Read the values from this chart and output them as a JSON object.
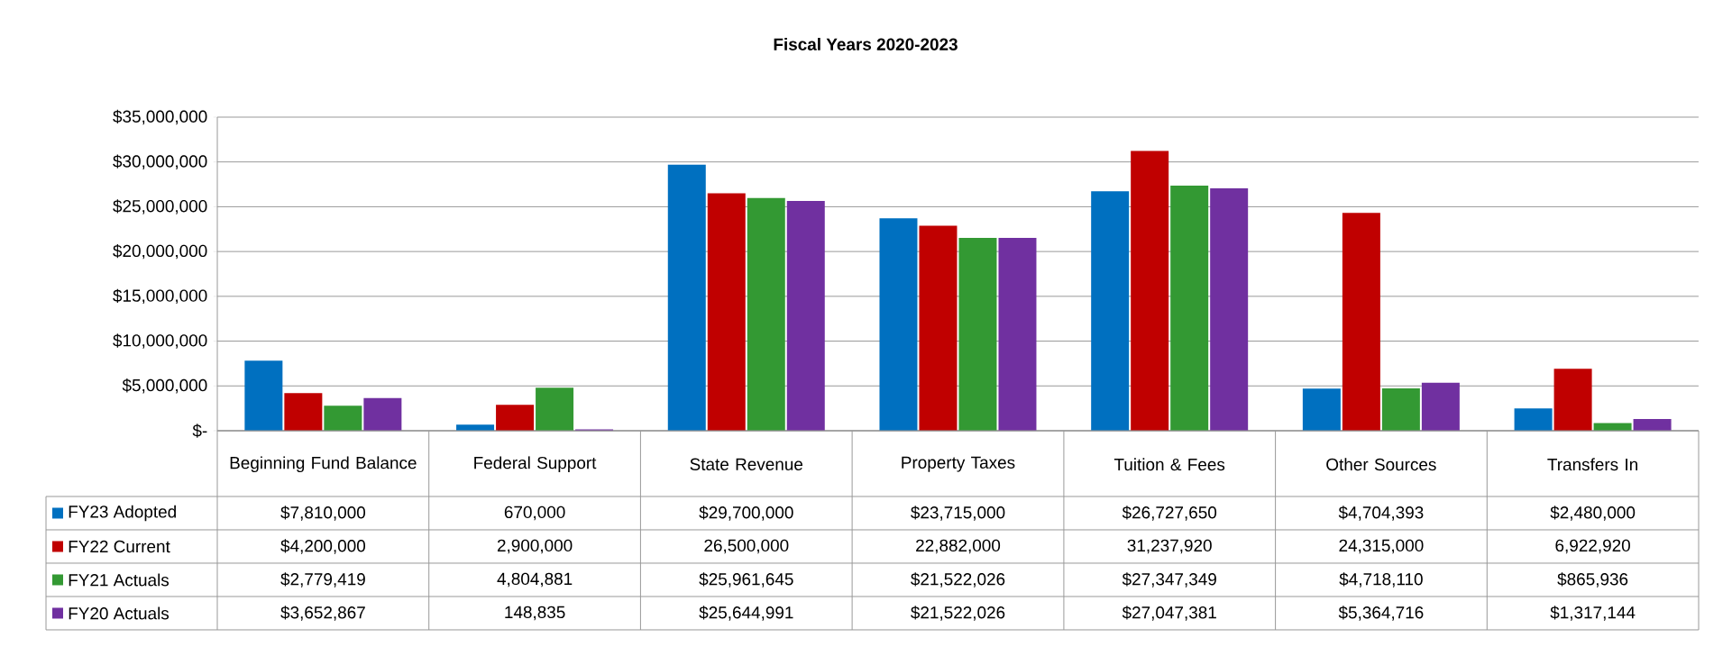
{
  "chart_data": {
    "type": "bar",
    "title": "Fiscal Years 2020-2023",
    "categories": [
      "Beginning Fund Balance",
      "Federal Support",
      "State Revenue",
      "Property Taxes",
      "Tuition & Fees",
      "Other Sources",
      "Transfers In"
    ],
    "series": [
      {
        "name": "FY23 Adopted",
        "color": "#0070c0",
        "values": [
          7810000,
          670000,
          29700000,
          23715000,
          26727650,
          4704393,
          2480000
        ],
        "value_labels": [
          "$7,810,000",
          "670,000",
          "$29,700,000",
          "$23,715,000",
          "$26,727,650",
          "$4,704,393",
          "$2,480,000"
        ]
      },
      {
        "name": "FY22 Current",
        "color": "#c00000",
        "values": [
          4200000,
          2900000,
          26500000,
          22882000,
          31237920,
          24315000,
          6922920
        ],
        "value_labels": [
          "$4,200,000",
          "2,900,000",
          "26,500,000",
          "22,882,000",
          "31,237,920",
          "24,315,000",
          "6,922,920"
        ]
      },
      {
        "name": "FY21 Actuals",
        "color": "#339933",
        "values": [
          2779419,
          4804881,
          25961645,
          21522026,
          27347349,
          4718110,
          865936
        ],
        "value_labels": [
          "$2,779,419",
          "4,804,881",
          "$25,961,645",
          "$21,522,026",
          "$27,347,349",
          "$4,718,110",
          "$865,936"
        ]
      },
      {
        "name": "FY20 Actuals",
        "color": "#7030a0",
        "values": [
          3652867,
          148835,
          25644991,
          21522026,
          27047381,
          5364716,
          1317144
        ],
        "value_labels": [
          "$3,652,867",
          "148,835",
          "$25,644,991",
          "$21,522,026",
          "$27,047,381",
          "$5,364,716",
          "$1,317,144"
        ]
      }
    ],
    "ylim": [
      0,
      35000000
    ],
    "yticks": [
      {
        "value": 0,
        "label": "$-"
      },
      {
        "value": 5000000,
        "label": "$5,000,000"
      },
      {
        "value": 10000000,
        "label": "$10,000,000"
      },
      {
        "value": 15000000,
        "label": "$15,000,000"
      },
      {
        "value": 20000000,
        "label": "$20,000,000"
      },
      {
        "value": 25000000,
        "label": "$25,000,000"
      },
      {
        "value": 30000000,
        "label": "$30,000,000"
      },
      {
        "value": 35000000,
        "label": "$35,000,000"
      }
    ],
    "grid": "y",
    "legend": "bottom"
  }
}
